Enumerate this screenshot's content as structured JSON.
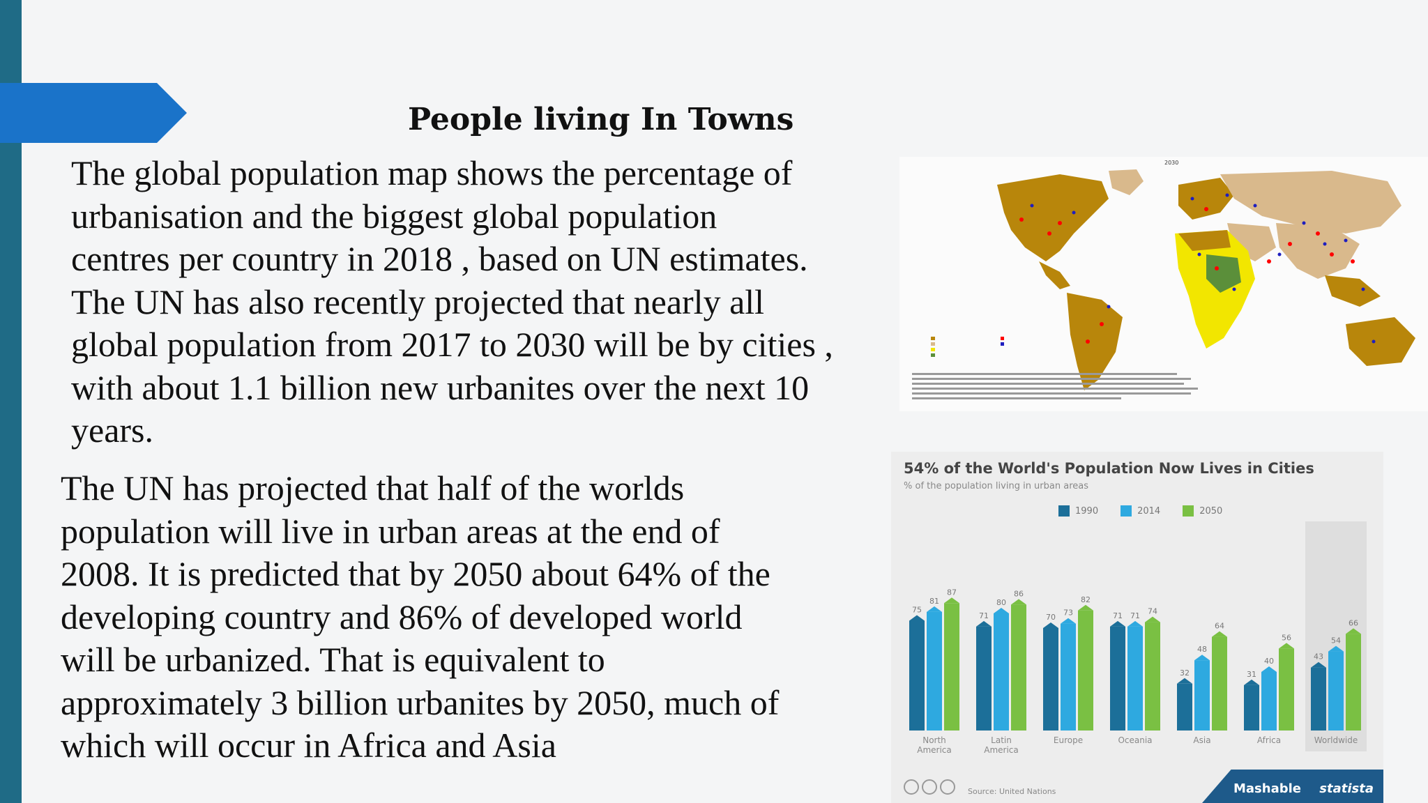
{
  "slide": {
    "title": "People living In Towns",
    "paragraph1": [
      "The global population map shows the percentage of",
      "urbanisation and the biggest global population",
      "centres per country in 2018 , based on UN estimates.",
      "The UN has also recently projected that nearly all",
      "global population from 2017 to 2030 will be by cities ,",
      "with about 1.1 billion new urbanites over the next 10",
      "years."
    ],
    "paragraph2": [
      "The UN has projected that half of the worlds",
      "population will live in urban areas at the end of",
      "2008. It is predicted that by 2050 about 64% of the",
      "developing country and 86% of developed world",
      "will be urbanized. That is equivalent to",
      "approximately 3 billion urbanites by 2050, much of",
      "which will occur in Africa and Asia"
    ]
  },
  "map": {
    "year_label": "2030",
    "colors": {
      "ocean": "#ffffff",
      "high": "#b8860b",
      "mid": "#d9b98c",
      "low": "#f2e600",
      "green": "#5b8f3a",
      "dots": [
        "#ff0000",
        "#1e1ebf",
        "#3d3dff"
      ]
    }
  },
  "chart": {
    "title": "54% of the World's Population Now Lives in Cities",
    "subtitle": "% of the population living in urban areas",
    "legend": [
      "1990",
      "2014",
      "2050"
    ],
    "source": "Source: United Nations",
    "brand_left": "Mashable",
    "brand_right": "statista"
  },
  "chart_data": {
    "type": "bar",
    "categories": [
      "North America",
      "Latin America",
      "Europe",
      "Oceania",
      "Asia",
      "Africa",
      "Worldwide"
    ],
    "series": [
      {
        "name": "1990",
        "values": [
          75,
          71,
          70,
          71,
          32,
          31,
          43
        ]
      },
      {
        "name": "2014",
        "values": [
          81,
          80,
          73,
          71,
          48,
          40,
          54
        ]
      },
      {
        "name": "2050",
        "values": [
          87,
          86,
          82,
          74,
          64,
          56,
          66
        ]
      }
    ],
    "colors": [
      "#1c6f99",
      "#2ea9e0",
      "#7ac043"
    ],
    "ylim": [
      0,
      100
    ]
  }
}
